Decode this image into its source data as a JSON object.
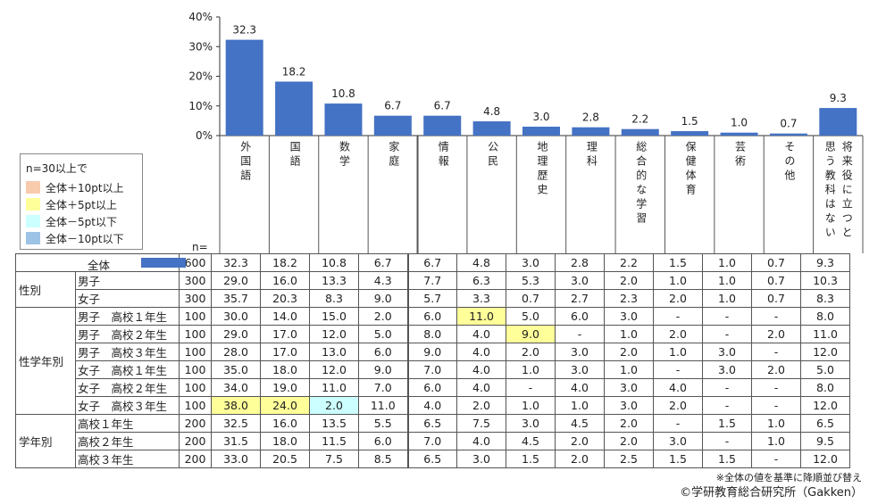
{
  "chart_data": {
    "type": "bar",
    "categories": [
      "外国語",
      "国語",
      "数学",
      "家庭",
      "情報",
      "公民",
      "地理歴史",
      "理科",
      "総合的な学習",
      "保健体育",
      "芸術",
      "その他",
      "将来役に立つと思う教科はない"
    ],
    "category_labels": [
      "外国語",
      "国語",
      "数学",
      "家庭",
      "情報",
      "公民",
      "地理歴史",
      "理科",
      "総合的な学習",
      "保健体育",
      "芸術",
      "その他",
      "将来役に立つと思う教科はない"
    ],
    "values": [
      32.3,
      18.2,
      10.8,
      6.7,
      6.7,
      4.8,
      3.0,
      2.8,
      2.2,
      1.5,
      1.0,
      0.7,
      9.3
    ],
    "value_labels": [
      "32.3",
      "18.2",
      "10.8",
      "6.7",
      "6.7",
      "4.8",
      "3.0",
      "2.8",
      "2.2",
      "1.5",
      "1.0",
      "0.7",
      "9.3"
    ],
    "ylim": [
      0,
      40
    ],
    "yticks": [
      0,
      10,
      20,
      30,
      40
    ],
    "ytick_labels": [
      "0%",
      "10%",
      "20%",
      "30%",
      "40%"
    ],
    "bar_color": "#4472c4",
    "grid": false
  },
  "legend": {
    "title": "n=30以上で",
    "items": [
      {
        "label": "全体＋10pt以上",
        "color": "#f8cbad"
      },
      {
        "label": "全体＋5pt以上",
        "color": "#ffff99"
      },
      {
        "label": "全体－5pt以下",
        "color": "#ccffff"
      },
      {
        "label": "全体－10pt以下",
        "color": "#9dc3e6"
      }
    ]
  },
  "n_label": "n=",
  "table": {
    "all": {
      "label": "全体",
      "n": "600",
      "values": [
        "32.3",
        "18.2",
        "10.8",
        "6.7",
        "6.7",
        "4.8",
        "3.0",
        "2.8",
        "2.2",
        "1.5",
        "1.0",
        "0.7",
        "9.3"
      ],
      "highlights": [
        "",
        "",
        "",
        "",
        "",
        "",
        "",
        "",
        "",
        "",
        "",
        "",
        ""
      ]
    },
    "groups": [
      {
        "name": "性別",
        "rows": [
          {
            "label": "男子",
            "n": "300",
            "values": [
              "29.0",
              "16.0",
              "13.3",
              "4.3",
              "7.7",
              "6.3",
              "5.3",
              "3.0",
              "2.0",
              "1.0",
              "1.0",
              "0.7",
              "10.3"
            ],
            "highlights": [
              "",
              "",
              "",
              "",
              "",
              "",
              "",
              "",
              "",
              "",
              "",
              "",
              ""
            ]
          },
          {
            "label": "女子",
            "n": "300",
            "values": [
              "35.7",
              "20.3",
              "8.3",
              "9.0",
              "5.7",
              "3.3",
              "0.7",
              "2.7",
              "2.3",
              "2.0",
              "1.0",
              "0.7",
              "8.3"
            ],
            "highlights": [
              "",
              "",
              "",
              "",
              "",
              "",
              "",
              "",
              "",
              "",
              "",
              "",
              ""
            ]
          }
        ]
      },
      {
        "name": "性学年別",
        "rows": [
          {
            "label": "男子　高校１年生",
            "n": "100",
            "values": [
              "30.0",
              "14.0",
              "15.0",
              "2.0",
              "6.0",
              "11.0",
              "5.0",
              "6.0",
              "3.0",
              "-",
              "-",
              "-",
              "8.0"
            ],
            "highlights": [
              "",
              "",
              "",
              "",
              "",
              "#ffff99",
              "",
              "",
              "",
              "",
              "",
              "",
              ""
            ]
          },
          {
            "label": "男子　高校２年生",
            "n": "100",
            "values": [
              "29.0",
              "17.0",
              "12.0",
              "5.0",
              "8.0",
              "4.0",
              "9.0",
              "-",
              "1.0",
              "2.0",
              "-",
              "2.0",
              "11.0"
            ],
            "highlights": [
              "",
              "",
              "",
              "",
              "",
              "",
              "#ffff99",
              "",
              "",
              "",
              "",
              "",
              ""
            ]
          },
          {
            "label": "男子　高校３年生",
            "n": "100",
            "values": [
              "28.0",
              "17.0",
              "13.0",
              "6.0",
              "9.0",
              "4.0",
              "2.0",
              "3.0",
              "2.0",
              "1.0",
              "3.0",
              "-",
              "12.0"
            ],
            "highlights": [
              "",
              "",
              "",
              "",
              "",
              "",
              "",
              "",
              "",
              "",
              "",
              "",
              ""
            ]
          },
          {
            "label": "女子　高校１年生",
            "n": "100",
            "values": [
              "35.0",
              "18.0",
              "12.0",
              "9.0",
              "7.0",
              "4.0",
              "1.0",
              "3.0",
              "1.0",
              "-",
              "3.0",
              "2.0",
              "5.0"
            ],
            "highlights": [
              "",
              "",
              "",
              "",
              "",
              "",
              "",
              "",
              "",
              "",
              "",
              "",
              ""
            ]
          },
          {
            "label": "女子　高校２年生",
            "n": "100",
            "values": [
              "34.0",
              "19.0",
              "11.0",
              "7.0",
              "6.0",
              "4.0",
              "-",
              "4.0",
              "3.0",
              "4.0",
              "-",
              "-",
              "8.0"
            ],
            "highlights": [
              "",
              "",
              "",
              "",
              "",
              "",
              "",
              "",
              "",
              "",
              "",
              "",
              ""
            ]
          },
          {
            "label": "女子　高校３年生",
            "n": "100",
            "values": [
              "38.0",
              "24.0",
              "2.0",
              "11.0",
              "4.0",
              "2.0",
              "1.0",
              "1.0",
              "3.0",
              "2.0",
              "-",
              "-",
              "12.0"
            ],
            "highlights": [
              "#ffff99",
              "#ffff99",
              "#ccffff",
              "",
              "",
              "",
              "",
              "",
              "",
              "",
              "",
              "",
              ""
            ]
          }
        ]
      },
      {
        "name": "学年別",
        "rows": [
          {
            "label": "高校１年生",
            "n": "200",
            "values": [
              "32.5",
              "16.0",
              "13.5",
              "5.5",
              "6.5",
              "7.5",
              "3.0",
              "4.5",
              "2.0",
              "-",
              "1.5",
              "1.0",
              "6.5"
            ],
            "highlights": [
              "",
              "",
              "",
              "",
              "",
              "",
              "",
              "",
              "",
              "",
              "",
              "",
              ""
            ]
          },
          {
            "label": "高校２年生",
            "n": "200",
            "values": [
              "31.5",
              "18.0",
              "11.5",
              "6.0",
              "7.0",
              "4.0",
              "4.5",
              "2.0",
              "2.0",
              "3.0",
              "-",
              "1.0",
              "9.5"
            ],
            "highlights": [
              "",
              "",
              "",
              "",
              "",
              "",
              "",
              "",
              "",
              "",
              "",
              "",
              ""
            ]
          },
          {
            "label": "高校３年生",
            "n": "200",
            "values": [
              "33.0",
              "20.5",
              "7.5",
              "8.5",
              "6.5",
              "3.0",
              "1.5",
              "2.0",
              "2.5",
              "1.5",
              "1.5",
              "-",
              "12.0"
            ],
            "highlights": [
              "",
              "",
              "",
              "",
              "",
              "",
              "",
              "",
              "",
              "",
              "",
              "",
              ""
            ]
          }
        ]
      }
    ]
  },
  "note": "※全体の値を基準に降順並び替え",
  "copyright": "©学研教育総合研究所（Gakken）"
}
